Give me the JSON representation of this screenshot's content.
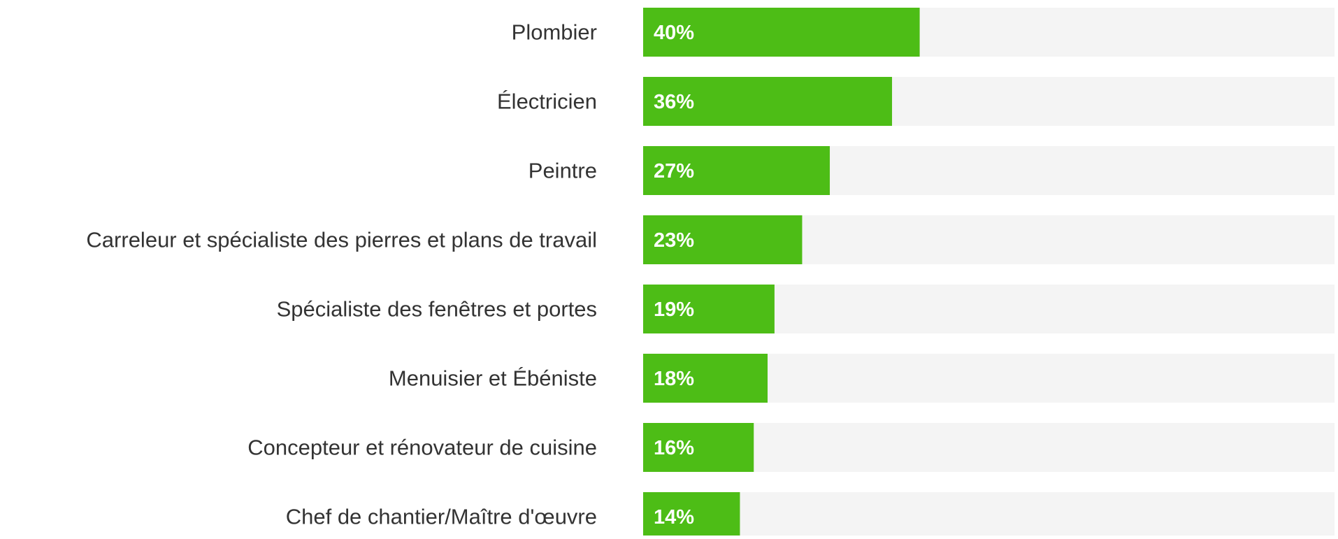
{
  "chart_data": {
    "type": "bar",
    "orientation": "horizontal",
    "categories": [
      "Plombier",
      "Électricien",
      "Peintre",
      "Carreleur et spécialiste des pierres et plans de travail",
      "Spécialiste des fenêtres et portes",
      "Menuisier et Ébéniste",
      "Concepteur et rénovateur de cuisine",
      "Chef de chantier/Maître d'œuvre"
    ],
    "values": [
      40,
      36,
      27,
      23,
      19,
      18,
      16,
      14
    ],
    "value_labels": [
      "40%",
      "36%",
      "27%",
      "23%",
      "19%",
      "18%",
      "16%",
      "14%"
    ],
    "color": "#4dbd16",
    "track_color": "#f4f4f4",
    "xlim": [
      0,
      100
    ]
  }
}
